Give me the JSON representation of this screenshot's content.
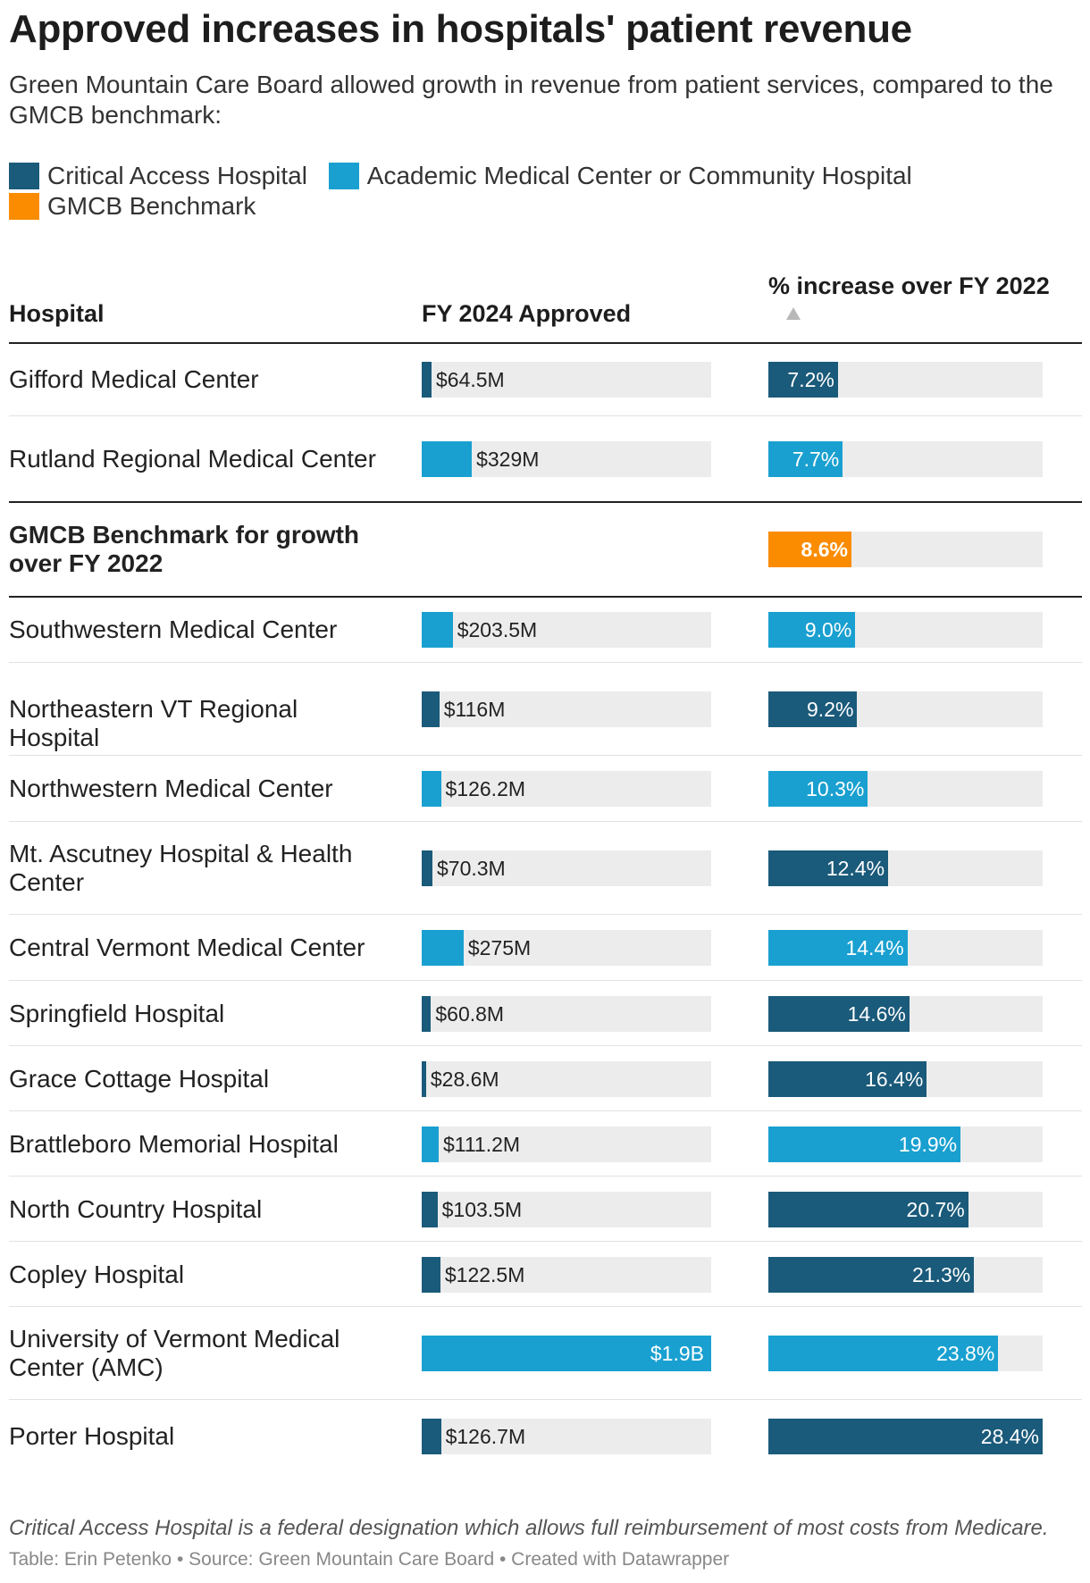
{
  "colors": {
    "critical_access": "#1a5a7a",
    "academic_community": "#19a0d0",
    "benchmark": "#fb8c00",
    "track": "#ececec"
  },
  "title": "Approved increases in hospitals' patient revenue",
  "subtitle": "Green Mountain Care Board allowed growth in revenue from patient services, compared to the GMCB benchmark:",
  "legend": [
    {
      "label": "Critical Access Hospital",
      "color": "#1a5a7a"
    },
    {
      "label": "Academic Medical Center or Community Hospital",
      "color": "#19a0d0"
    },
    {
      "label": "GMCB Benchmark",
      "color": "#fb8c00"
    }
  ],
  "footnote": "Critical Access Hospital is a federal designation which allows full reimbursement of most costs from Medicare.",
  "credits": "Table: Erin Petenko • Source: Green Mountain Care Board • Created with Datawrapper",
  "chart_data": {
    "type": "table",
    "title": "Approved increases in hospitals' patient revenue",
    "columns": [
      "Hospital",
      "FY 2024 Approved",
      "% increase over FY 2022"
    ],
    "sort": {
      "column": "% increase over FY 2022",
      "order": "ascending"
    },
    "approved_max_millions": 1900,
    "increase_max_pct": 28.4,
    "rows": [
      {
        "hospital": "Gifford Medical Center",
        "category": "critical",
        "approved_label": "$64.5M",
        "approved_millions": 64.5,
        "increase_label": "7.2%",
        "increase_pct": 7.2
      },
      {
        "hospital": "Rutland Regional Medical Center",
        "category": "academic",
        "approved_label": "$329M",
        "approved_millions": 329,
        "increase_label": "7.7%",
        "increase_pct": 7.7
      },
      {
        "hospital": "GMCB Benchmark for growth over FY 2022",
        "category": "benchmark",
        "approved_label": "",
        "approved_millions": null,
        "increase_label": "8.6%",
        "increase_pct": 8.6
      },
      {
        "hospital": "Southwestern Medical Center",
        "category": "academic",
        "approved_label": "$203.5M",
        "approved_millions": 203.5,
        "increase_label": "9.0%",
        "increase_pct": 9.0
      },
      {
        "hospital": "Northeastern VT Regional Hospital",
        "category": "critical",
        "approved_label": "$116M",
        "approved_millions": 116,
        "increase_label": "9.2%",
        "increase_pct": 9.2
      },
      {
        "hospital": "Northwestern Medical Center",
        "category": "academic",
        "approved_label": "$126.2M",
        "approved_millions": 126.2,
        "increase_label": "10.3%",
        "increase_pct": 10.3
      },
      {
        "hospital": "Mt. Ascutney Hospital & Health Center",
        "category": "critical",
        "approved_label": "$70.3M",
        "approved_millions": 70.3,
        "increase_label": "12.4%",
        "increase_pct": 12.4
      },
      {
        "hospital": "Central Vermont Medical Center",
        "category": "academic",
        "approved_label": "$275M",
        "approved_millions": 275,
        "increase_label": "14.4%",
        "increase_pct": 14.4
      },
      {
        "hospital": "Springfield Hospital",
        "category": "critical",
        "approved_label": "$60.8M",
        "approved_millions": 60.8,
        "increase_label": "14.6%",
        "increase_pct": 14.6
      },
      {
        "hospital": "Grace Cottage Hospital",
        "category": "critical",
        "approved_label": "$28.6M",
        "approved_millions": 28.6,
        "increase_label": "16.4%",
        "increase_pct": 16.4
      },
      {
        "hospital": "Brattleboro Memorial Hospital",
        "category": "academic",
        "approved_label": "$111.2M",
        "approved_millions": 111.2,
        "increase_label": "19.9%",
        "increase_pct": 19.9
      },
      {
        "hospital": "North Country Hospital",
        "category": "critical",
        "approved_label": "$103.5M",
        "approved_millions": 103.5,
        "increase_label": "20.7%",
        "increase_pct": 20.7
      },
      {
        "hospital": "Copley Hospital",
        "category": "critical",
        "approved_label": "$122.5M",
        "approved_millions": 122.5,
        "increase_label": "21.3%",
        "increase_pct": 21.3
      },
      {
        "hospital": "University of Vermont Medical Center (AMC)",
        "category": "academic",
        "approved_label": "$1.9B",
        "approved_millions": 1900,
        "increase_label": "23.8%",
        "increase_pct": 23.8
      },
      {
        "hospital": "Porter Hospital",
        "category": "critical",
        "approved_label": "$126.7M",
        "approved_millions": 126.7,
        "increase_label": "28.4%",
        "increase_pct": 28.4
      }
    ]
  }
}
